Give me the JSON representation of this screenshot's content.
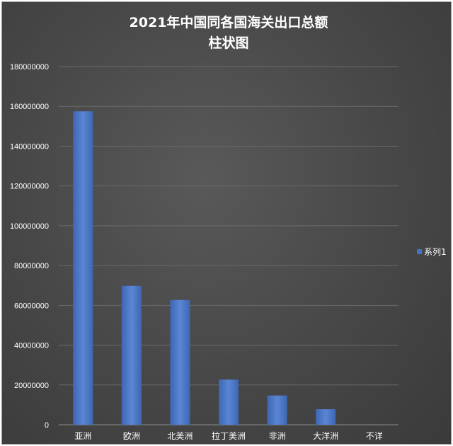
{
  "chart_data": {
    "type": "bar",
    "title_lines": [
      "2021年中国同各国海关出口总额",
      "柱状图"
    ],
    "categories": [
      "亚洲",
      "欧洲",
      "北美洲",
      "拉丁美洲",
      "非洲",
      "大洋洲",
      "不详"
    ],
    "series": [
      {
        "name": "系列1",
        "values": [
          157500000,
          69800000,
          62700000,
          22700000,
          14700000,
          7800000,
          0
        ],
        "color": "#4472c4"
      }
    ],
    "y_ticks": [
      "0",
      "20000000",
      "40000000",
      "60000000",
      "80000000",
      "100000000",
      "120000000",
      "140000000",
      "160000000",
      "180000000"
    ],
    "ylim": [
      0,
      180000000
    ],
    "grid": true,
    "legend_position": "right"
  }
}
